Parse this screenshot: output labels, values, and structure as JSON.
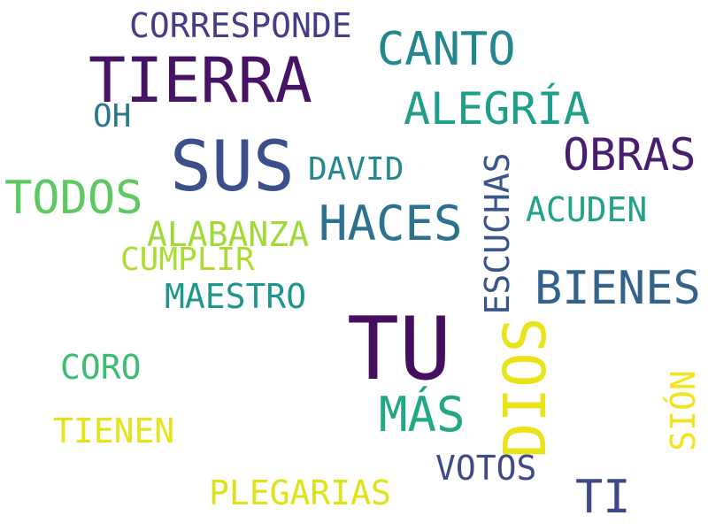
{
  "cloud": {
    "words": [
      {
        "text": "CORRESPONDE",
        "color": "#433e85"
      },
      {
        "text": "TIERRA",
        "color": "#471365"
      },
      {
        "text": "CANTO",
        "color": "#24868e"
      },
      {
        "text": "ALEGRÍA",
        "color": "#1f9e89"
      },
      {
        "text": "OH",
        "color": "#2a788e"
      },
      {
        "text": "SUS",
        "color": "#3b4f8a"
      },
      {
        "text": "OBRAS",
        "color": "#481f70"
      },
      {
        "text": "DAVID",
        "color": "#23898e"
      },
      {
        "text": "TODOS",
        "color": "#5ec962"
      },
      {
        "text": "HACES",
        "color": "#2c728e"
      },
      {
        "text": "ACUDEN",
        "color": "#20a386"
      },
      {
        "text": "ALABANZA",
        "color": "#a0da39"
      },
      {
        "text": "CUMPLIR",
        "color": "#addc30"
      },
      {
        "text": "BIENES",
        "color": "#33638d"
      },
      {
        "text": "MAESTRO",
        "color": "#1f968b"
      },
      {
        "text": "TU",
        "color": "#440f5e"
      },
      {
        "text": "CORO",
        "color": "#3dbc74"
      },
      {
        "text": "MÁS",
        "color": "#22a884"
      },
      {
        "text": "TIENEN",
        "color": "#e5e419"
      },
      {
        "text": "VOTOS",
        "color": "#3e4a89"
      },
      {
        "text": "PLEGARIAS",
        "color": "#dde318"
      },
      {
        "text": "TI",
        "color": "#3f4788"
      }
    ],
    "vertical_words": [
      {
        "text": "ESCUCHAS",
        "color": "#3a548c"
      },
      {
        "text": "DIOS",
        "color": "#e8e419"
      },
      {
        "text": "SIÓN",
        "color": "#f0e51c"
      }
    ]
  }
}
